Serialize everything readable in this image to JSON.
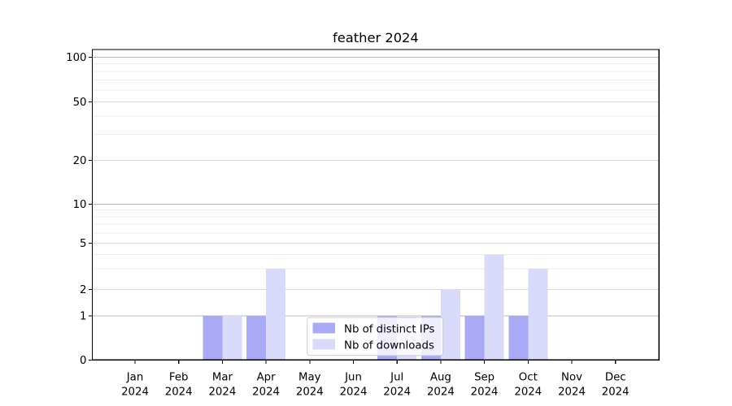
{
  "page": {
    "background": "#ffffff"
  },
  "colors": {
    "bar_distinct_ips": "#a9a9f5",
    "bar_downloads": "#d9d9fa",
    "grid_decade": "#b9b9b9",
    "grid_major": "#d9d9d9",
    "grid_minor": "#ececec",
    "axis": "#000000",
    "text": "#000000",
    "legend_border": "#cccccc",
    "legend_background": "rgba(255,255,255,0.8)"
  },
  "chart_data": {
    "type": "bar",
    "title": "feather 2024",
    "categories": [
      "Jan",
      "Feb",
      "Mar",
      "Apr",
      "May",
      "Jun",
      "Jul",
      "Aug",
      "Sep",
      "Oct",
      "Nov",
      "Dec"
    ],
    "year": "2024",
    "series": [
      {
        "name": "Nb of distinct IPs",
        "color": "#a9a9f5",
        "values": [
          0,
          0,
          1,
          1,
          0,
          0,
          1,
          1,
          1,
          1,
          0,
          0
        ]
      },
      {
        "name": "Nb of downloads",
        "color": "#d9d9fa",
        "values": [
          0,
          0,
          1,
          3,
          0,
          0,
          1,
          2,
          4,
          3,
          0,
          0
        ]
      }
    ],
    "y_axis": {
      "scale": "log (zero pinned at baseline)",
      "tick_values": [
        0,
        1,
        2,
        5,
        10,
        20,
        50,
        100
      ],
      "tick_labels": [
        "0",
        "1",
        "2",
        "5",
        "10",
        "20",
        "50",
        "100"
      ],
      "minor_tick_values": [
        3,
        4,
        6,
        7,
        8,
        9,
        30,
        40,
        60,
        70,
        80,
        90
      ],
      "ylim": [
        0,
        115
      ]
    },
    "grid": true,
    "legend": {
      "position": "lower center",
      "entries": [
        "Nb of distinct IPs",
        "Nb of downloads"
      ]
    }
  }
}
